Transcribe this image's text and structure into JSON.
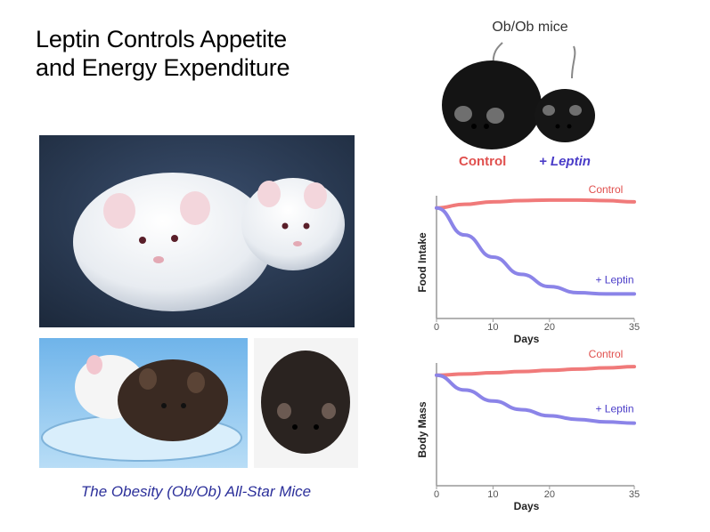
{
  "title": {
    "line1": "Leptin Controls Appetite",
    "line2": "and Energy Expenditure"
  },
  "caption": "The Obesity (Ob/Ob) All-Star Mice",
  "mice_photo": {
    "label": "Ob/Ob mice",
    "control_label": "Control",
    "leptin_label": "+ Leptin"
  },
  "colors": {
    "control": "#f07a7a",
    "leptin": "#8b84e8",
    "photo_bg": "#2d3e57",
    "petri_bg": "#8fc6ee"
  },
  "chart_data": [
    {
      "type": "line",
      "ylabel": "Food Intake",
      "xlabel": "Days",
      "xticks": [
        0,
        10,
        20,
        35
      ],
      "xlim": [
        0,
        35
      ],
      "ylim": [
        0,
        1
      ],
      "series": [
        {
          "name": "Control",
          "x": [
            0,
            5,
            10,
            15,
            20,
            25,
            30,
            35
          ],
          "y": [
            0.9,
            0.93,
            0.95,
            0.96,
            0.965,
            0.965,
            0.96,
            0.95
          ]
        },
        {
          "name": "+ Leptin",
          "x": [
            0,
            5,
            10,
            15,
            20,
            25,
            30,
            35
          ],
          "y": [
            0.9,
            0.68,
            0.5,
            0.36,
            0.26,
            0.21,
            0.2,
            0.2
          ]
        }
      ]
    },
    {
      "type": "line",
      "ylabel": "Body Mass",
      "xlabel": "Days",
      "xticks": [
        0,
        10,
        20,
        35
      ],
      "xlim": [
        0,
        35
      ],
      "ylim": [
        0,
        1
      ],
      "series": [
        {
          "name": "Control",
          "x": [
            0,
            5,
            10,
            15,
            20,
            25,
            30,
            35
          ],
          "y": [
            0.9,
            0.91,
            0.92,
            0.93,
            0.94,
            0.95,
            0.96,
            0.97
          ]
        },
        {
          "name": "+ Leptin",
          "x": [
            0,
            5,
            10,
            15,
            20,
            25,
            30,
            35
          ],
          "y": [
            0.9,
            0.78,
            0.69,
            0.62,
            0.57,
            0.54,
            0.52,
            0.51
          ]
        }
      ]
    }
  ]
}
